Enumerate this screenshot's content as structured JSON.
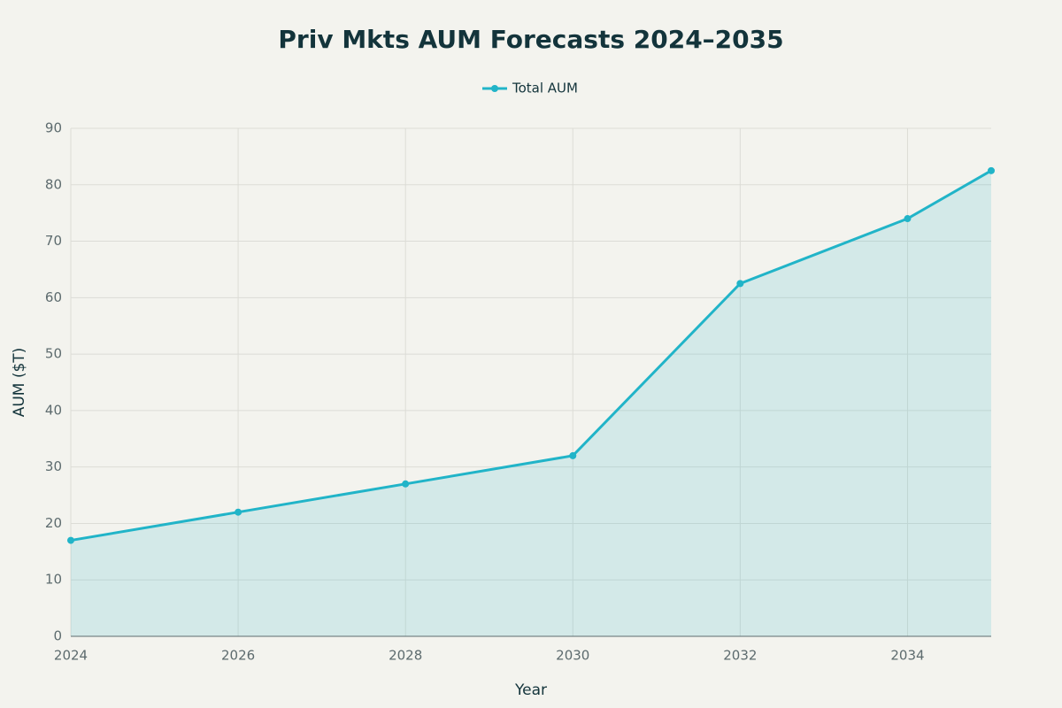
{
  "chart_data": {
    "type": "line",
    "title": "Priv Mkts AUM Forecasts 2024–2035",
    "x": [
      2024,
      2026,
      2028,
      2030,
      2032,
      2034,
      2035
    ],
    "series": [
      {
        "name": "Total AUM",
        "color": "#21b4c8",
        "values": [
          17,
          22,
          27,
          32,
          62.5,
          74,
          82.5
        ]
      }
    ],
    "x_label": "Year",
    "y_label": "AUM ($T)",
    "xlim": [
      2024,
      2035
    ],
    "xticks": [
      2024,
      2026,
      2028,
      2030,
      2032,
      2034
    ],
    "ylim": [
      0,
      90
    ],
    "yticks": [
      0,
      10,
      20,
      30,
      40,
      50,
      60,
      70,
      80,
      90
    ],
    "grid": true,
    "area_fill": true,
    "legend": "top"
  }
}
